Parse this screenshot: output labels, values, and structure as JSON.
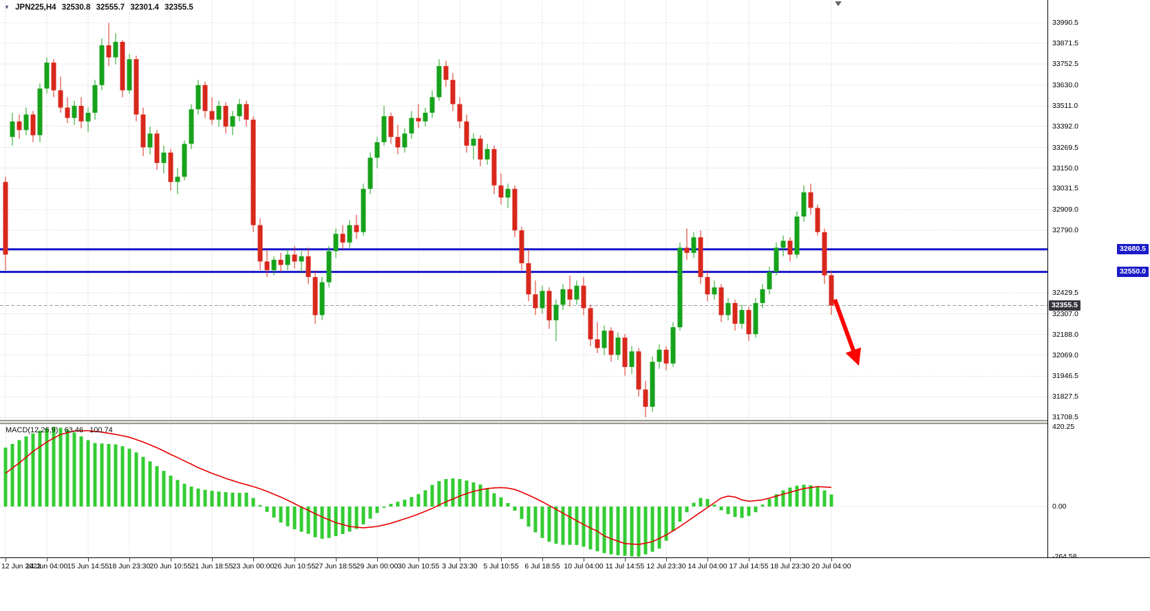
{
  "header": {
    "symbol_period": "JPN225,H4",
    "open": "32530.8",
    "high": "32555.7",
    "low": "32301.4",
    "close": "32355.5"
  },
  "indicator": {
    "name": "MACD(12,26,9)",
    "main_value": "63.46",
    "signal_value": "100.74"
  },
  "colors": {
    "up": "#17a21b",
    "down": "#d8281c",
    "hline": "#1414c8",
    "hline_badge": "#1b1bc8",
    "current_badge": "#36363e",
    "macd_bar": "#33cc33",
    "signal": "#e60000",
    "grid": "#c9c9c9",
    "arrow": "#ff0000"
  },
  "chart_data": [
    {
      "type": "candlestick",
      "symbol": "JPN225",
      "timeframe": "H4",
      "bars_per_label": 6,
      "x_labels": [
        "12 Jun 2023",
        "14 Jun 04:00",
        "15 Jun 14:55",
        "18 Jun 23:30",
        "20 Jun 10:55",
        "21 Jun 18:55",
        "23 Jun 00:00",
        "26 Jun 10:55",
        "27 Jun 18:55",
        "29 Jun 00:00",
        "30 Jun 10:55",
        "3 Jul 23:30",
        "5 Jul 10:55",
        "6 Jul 18:55",
        "10 Jul 04:00",
        "11 Jul 14:55",
        "12 Jul 23:30",
        "14 Jul 04:00",
        "17 Jul 14:55",
        "18 Jul 23:30",
        "20 Jul 04:00"
      ],
      "y_ticks": [
        "33990.5",
        "33871.5",
        "33752.5",
        "33630.0",
        "33511.0",
        "33392.0",
        "33269.5",
        "33150.0",
        "33031.5",
        "32909.0",
        "32790.0",
        "32429.5",
        "32307.0",
        "32188.0",
        "32069.0",
        "31946.5",
        "31827.5",
        "31708.5"
      ],
      "y_grid_hidden": [
        32670.5,
        32551.0
      ],
      "ylim": [
        31694,
        34122
      ],
      "hlines": [
        {
          "price": 32680.5,
          "label": "32680.5"
        },
        {
          "price": 32550.0,
          "label": "32550.0"
        }
      ],
      "last_price": 32355.5,
      "last_price_label": "32355.5",
      "annotations": {
        "arrow": {
          "from": [
            120.5,
            32390
          ],
          "to": [
            123.8,
            32030
          ]
        }
      },
      "candles": [
        [
          33070,
          33100,
          32560,
          32650
        ],
        [
          33330,
          33470,
          33280,
          33420
        ],
        [
          33420,
          33460,
          33320,
          33370
        ],
        [
          33370,
          33500,
          33340,
          33460
        ],
        [
          33460,
          33480,
          33300,
          33340
        ],
        [
          33340,
          33640,
          33300,
          33610
        ],
        [
          33610,
          33790,
          33580,
          33760
        ],
        [
          33760,
          33780,
          33560,
          33600
        ],
        [
          33600,
          33680,
          33470,
          33500
        ],
        [
          33500,
          33560,
          33410,
          33440
        ],
        [
          33440,
          33540,
          33400,
          33510
        ],
        [
          33510,
          33560,
          33380,
          33420
        ],
        [
          33420,
          33500,
          33360,
          33470
        ],
        [
          33470,
          33660,
          33430,
          33630
        ],
        [
          33630,
          33900,
          33600,
          33860
        ],
        [
          33860,
          33990,
          33740,
          33790
        ],
        [
          33790,
          33930,
          33750,
          33880
        ],
        [
          33880,
          33890,
          33560,
          33600
        ],
        [
          33600,
          33810,
          33580,
          33780
        ],
        [
          33780,
          33800,
          33420,
          33460
        ],
        [
          33460,
          33500,
          33220,
          33270
        ],
        [
          33270,
          33390,
          33230,
          33350
        ],
        [
          33350,
          33370,
          33140,
          33180
        ],
        [
          33180,
          33280,
          33120,
          33240
        ],
        [
          33240,
          33260,
          33020,
          33070
        ],
        [
          33070,
          33150,
          33000,
          33100
        ],
        [
          33100,
          33310,
          33080,
          33290
        ],
        [
          33290,
          33520,
          33260,
          33490
        ],
        [
          33490,
          33660,
          33460,
          33630
        ],
        [
          33630,
          33650,
          33440,
          33480
        ],
        [
          33480,
          33560,
          33400,
          33430
        ],
        [
          33430,
          33540,
          33390,
          33510
        ],
        [
          33510,
          33530,
          33350,
          33390
        ],
        [
          33390,
          33480,
          33340,
          33450
        ],
        [
          33450,
          33550,
          33420,
          33520
        ],
        [
          33520,
          33540,
          33390,
          33430
        ],
        [
          33430,
          33450,
          32780,
          32820
        ],
        [
          32820,
          32860,
          32560,
          32610
        ],
        [
          32610,
          32680,
          32520,
          32560
        ],
        [
          32560,
          32640,
          32530,
          32620
        ],
        [
          32620,
          32660,
          32550,
          32590
        ],
        [
          32590,
          32680,
          32560,
          32650
        ],
        [
          32650,
          32700,
          32570,
          32610
        ],
        [
          32610,
          32670,
          32540,
          32640
        ],
        [
          32640,
          32690,
          32480,
          32520
        ],
        [
          32520,
          32560,
          32250,
          32300
        ],
        [
          32300,
          32520,
          32270,
          32490
        ],
        [
          32490,
          32700,
          32460,
          32670
        ],
        [
          32670,
          32800,
          32630,
          32770
        ],
        [
          32770,
          32820,
          32680,
          32720
        ],
        [
          32720,
          32850,
          32690,
          32820
        ],
        [
          32820,
          32880,
          32740,
          32780
        ],
        [
          32780,
          33060,
          32760,
          33030
        ],
        [
          33030,
          33240,
          33000,
          33210
        ],
        [
          33210,
          33330,
          33150,
          33300
        ],
        [
          33300,
          33510,
          33280,
          33450
        ],
        [
          33450,
          33470,
          33290,
          33330
        ],
        [
          33330,
          33400,
          33230,
          33270
        ],
        [
          33270,
          33380,
          33240,
          33350
        ],
        [
          33350,
          33480,
          33320,
          33440
        ],
        [
          33440,
          33520,
          33380,
          33420
        ],
        [
          33420,
          33500,
          33390,
          33470
        ],
        [
          33470,
          33600,
          33440,
          33560
        ],
        [
          33560,
          33780,
          33540,
          33740
        ],
        [
          33740,
          33770,
          33620,
          33660
        ],
        [
          33660,
          33700,
          33480,
          33520
        ],
        [
          33520,
          33560,
          33380,
          33420
        ],
        [
          33420,
          33460,
          33240,
          33280
        ],
        [
          33280,
          33350,
          33200,
          33320
        ],
        [
          33320,
          33340,
          33160,
          33200
        ],
        [
          33200,
          33290,
          33170,
          33260
        ],
        [
          33260,
          33280,
          33000,
          33050
        ],
        [
          33050,
          33120,
          32940,
          32980
        ],
        [
          32980,
          33060,
          32920,
          33030
        ],
        [
          33030,
          33050,
          32750,
          32790
        ],
        [
          32790,
          32810,
          32560,
          32600
        ],
        [
          32600,
          32680,
          32380,
          32420
        ],
        [
          32420,
          32500,
          32300,
          32340
        ],
        [
          32340,
          32470,
          32310,
          32440
        ],
        [
          32440,
          32460,
          32220,
          32270
        ],
        [
          32270,
          32390,
          32150,
          32360
        ],
        [
          32360,
          32480,
          32330,
          32450
        ],
        [
          32450,
          32530,
          32350,
          32390
        ],
        [
          32390,
          32500,
          32360,
          32470
        ],
        [
          32470,
          32520,
          32300,
          32340
        ],
        [
          32340,
          32360,
          32120,
          32160
        ],
        [
          32160,
          32260,
          32080,
          32110
        ],
        [
          32110,
          32240,
          32070,
          32210
        ],
        [
          32210,
          32230,
          32030,
          32070
        ],
        [
          32070,
          32200,
          32040,
          32170
        ],
        [
          32170,
          32190,
          31950,
          32000
        ],
        [
          32000,
          32120,
          31960,
          32090
        ],
        [
          32090,
          32110,
          31830,
          31870
        ],
        [
          31870,
          31920,
          31710,
          31770
        ],
        [
          31770,
          32060,
          31740,
          32030
        ],
        [
          32030,
          32130,
          31990,
          32100
        ],
        [
          32100,
          32120,
          31980,
          32020
        ],
        [
          32020,
          32260,
          32000,
          32230
        ],
        [
          32230,
          32720,
          32210,
          32690
        ],
        [
          32690,
          32800,
          32620,
          32660
        ],
        [
          32660,
          32780,
          32630,
          32750
        ],
        [
          32750,
          32790,
          32480,
          32520
        ],
        [
          32520,
          32560,
          32380,
          32420
        ],
        [
          32420,
          32500,
          32390,
          32460
        ],
        [
          32460,
          32480,
          32260,
          32300
        ],
        [
          32300,
          32400,
          32270,
          32370
        ],
        [
          32370,
          32390,
          32210,
          32250
        ],
        [
          32250,
          32360,
          32220,
          32330
        ],
        [
          32330,
          32350,
          32150,
          32190
        ],
        [
          32190,
          32400,
          32170,
          32370
        ],
        [
          32370,
          32480,
          32340,
          32450
        ],
        [
          32450,
          32580,
          32420,
          32550
        ],
        [
          32550,
          32720,
          32530,
          32690
        ],
        [
          32690,
          32760,
          32640,
          32730
        ],
        [
          32730,
          32750,
          32610,
          32650
        ],
        [
          32650,
          32900,
          32630,
          32870
        ],
        [
          32870,
          33050,
          32840,
          33010
        ],
        [
          33010,
          33060,
          32880,
          32920
        ],
        [
          32920,
          32940,
          32760,
          32780
        ],
        [
          32780,
          32800,
          32480,
          32530
        ],
        [
          32530.8,
          32555.7,
          32301.4,
          32355.5
        ]
      ]
    },
    {
      "type": "bar",
      "name": "MACD",
      "params": "12,26,9",
      "ylim": [
        -268.1,
        434.7
      ],
      "y_ticks": [
        {
          "value": 420.25,
          "label": "420.25"
        },
        {
          "value": 0,
          "label": "0.00"
        },
        {
          "value": -264.58,
          "label": "-264.58"
        }
      ],
      "values": [
        310,
        330,
        350,
        370,
        385,
        400,
        412,
        420.25,
        415,
        405,
        390,
        370,
        350,
        335,
        332,
        330,
        328,
        318,
        305,
        285,
        262,
        238,
        213,
        188,
        163,
        140,
        120,
        105,
        95,
        88,
        83,
        79,
        76,
        73,
        72,
        73,
        45,
        8,
        -28,
        -58,
        -84,
        -104,
        -120,
        -133,
        -144,
        -162,
        -170,
        -166,
        -156,
        -145,
        -132,
        -118,
        -94,
        -64,
        -34,
        -6,
        14,
        25,
        36,
        50,
        66,
        86,
        114,
        134,
        145,
        148,
        145,
        137,
        127,
        116,
        94,
        70,
        48,
        18,
        -22,
        -66,
        -106,
        -136,
        -166,
        -186,
        -196,
        -202,
        -202,
        -203,
        -212,
        -226,
        -236,
        -246,
        -252,
        -257,
        -260,
        -263,
        -264.58,
        -252,
        -238,
        -222,
        -180,
        -130,
        -80,
        -30,
        20,
        45,
        40,
        10,
        -20,
        -40,
        -55,
        -60,
        -50,
        -30,
        10,
        40,
        65,
        85,
        100,
        110,
        115,
        112,
        105,
        85,
        63.46
      ],
      "signal": [
        175,
        203,
        230,
        260,
        290,
        315,
        340,
        360,
        380,
        389,
        398,
        399,
        400,
        396,
        392,
        386,
        380,
        373,
        365,
        353,
        340,
        325,
        310,
        293,
        275,
        258,
        240,
        223,
        205,
        190,
        175,
        162,
        148,
        137,
        125,
        115,
        105,
        93,
        80,
        65,
        50,
        33,
        15,
        -3,
        -20,
        -38,
        -55,
        -70,
        -85,
        -95,
        -105,
        -109,
        -112,
        -109,
        -105,
        -97,
        -88,
        -77,
        -65,
        -53,
        -40,
        -25,
        -10,
        8,
        25,
        40,
        55,
        68,
        80,
        88,
        95,
        98,
        100,
        97,
        90,
        76,
        60,
        43,
        25,
        5,
        -15,
        -35,
        -55,
        -75,
        -95,
        -113,
        -130,
        -155,
        -170,
        -183,
        -195,
        -198,
        -200,
        -193,
        -185,
        -168,
        -150,
        -128,
        -105,
        -80,
        -55,
        -30,
        -5,
        20,
        45,
        55,
        50,
        35,
        28,
        31,
        35,
        45,
        55,
        65,
        75,
        85,
        95,
        100,
        105,
        103,
        100.74
      ]
    }
  ]
}
